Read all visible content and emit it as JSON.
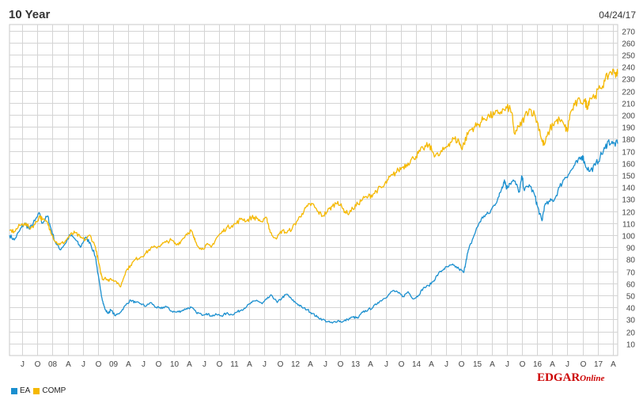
{
  "chart_data": {
    "type": "line",
    "title": "10 Year",
    "date": "04/24/17",
    "xlabel": "",
    "ylabel": "",
    "ylim": [
      0,
      275
    ],
    "yticks": [
      10,
      20,
      30,
      40,
      50,
      60,
      70,
      80,
      90,
      100,
      110,
      120,
      130,
      140,
      150,
      160,
      170,
      180,
      190,
      200,
      210,
      220,
      230,
      240,
      250,
      260,
      270
    ],
    "xlim": [
      2007.29,
      2017.33
    ],
    "xticks": [
      {
        "label": "J",
        "t": 2007.5
      },
      {
        "label": "O",
        "t": 2007.75
      },
      {
        "label": "08",
        "t": 2008.0
      },
      {
        "label": "A",
        "t": 2008.25
      },
      {
        "label": "J",
        "t": 2008.5
      },
      {
        "label": "O",
        "t": 2008.75
      },
      {
        "label": "09",
        "t": 2009.0
      },
      {
        "label": "A",
        "t": 2009.25
      },
      {
        "label": "J",
        "t": 2009.5
      },
      {
        "label": "O",
        "t": 2009.75
      },
      {
        "label": "10",
        "t": 2010.0
      },
      {
        "label": "A",
        "t": 2010.25
      },
      {
        "label": "J",
        "t": 2010.5
      },
      {
        "label": "O",
        "t": 2010.75
      },
      {
        "label": "11",
        "t": 2011.0
      },
      {
        "label": "A",
        "t": 2011.25
      },
      {
        "label": "J",
        "t": 2011.5
      },
      {
        "label": "O",
        "t": 2011.75
      },
      {
        "label": "12",
        "t": 2012.0
      },
      {
        "label": "A",
        "t": 2012.25
      },
      {
        "label": "J",
        "t": 2012.5
      },
      {
        "label": "O",
        "t": 2012.75
      },
      {
        "label": "13",
        "t": 2013.0
      },
      {
        "label": "A",
        "t": 2013.25
      },
      {
        "label": "J",
        "t": 2013.5
      },
      {
        "label": "O",
        "t": 2013.75
      },
      {
        "label": "14",
        "t": 2014.0
      },
      {
        "label": "A",
        "t": 2014.25
      },
      {
        "label": "J",
        "t": 2014.5
      },
      {
        "label": "O",
        "t": 2014.75
      },
      {
        "label": "15",
        "t": 2015.0
      },
      {
        "label": "A",
        "t": 2015.25
      },
      {
        "label": "J",
        "t": 2015.5
      },
      {
        "label": "O",
        "t": 2015.75
      },
      {
        "label": "16",
        "t": 2016.0
      },
      {
        "label": "A",
        "t": 2016.25
      },
      {
        "label": "J",
        "t": 2016.5
      },
      {
        "label": "O",
        "t": 2016.75
      },
      {
        "label": "17",
        "t": 2017.0
      },
      {
        "label": "A",
        "t": 2017.25
      }
    ],
    "grid": true,
    "legend_position": "bottom-left",
    "series": [
      {
        "name": "EA",
        "color": "#1a8fcf",
        "points": [
          [
            2007.29,
            100
          ],
          [
            2007.37,
            96
          ],
          [
            2007.46,
            104
          ],
          [
            2007.54,
            110
          ],
          [
            2007.62,
            105
          ],
          [
            2007.71,
            112
          ],
          [
            2007.79,
            118
          ],
          [
            2007.83,
            110
          ],
          [
            2007.92,
            116
          ],
          [
            2007.96,
            108
          ],
          [
            2008.04,
            95
          ],
          [
            2008.12,
            88
          ],
          [
            2008.21,
            93
          ],
          [
            2008.29,
            100
          ],
          [
            2008.37,
            97
          ],
          [
            2008.46,
            90
          ],
          [
            2008.54,
            98
          ],
          [
            2008.62,
            94
          ],
          [
            2008.71,
            82
          ],
          [
            2008.75,
            68
          ],
          [
            2008.79,
            55
          ],
          [
            2008.83,
            45
          ],
          [
            2008.87,
            38
          ],
          [
            2008.92,
            35
          ],
          [
            2008.96,
            38
          ],
          [
            2009.04,
            33
          ],
          [
            2009.12,
            36
          ],
          [
            2009.21,
            42
          ],
          [
            2009.29,
            46
          ],
          [
            2009.37,
            44
          ],
          [
            2009.46,
            43
          ],
          [
            2009.54,
            41
          ],
          [
            2009.62,
            44
          ],
          [
            2009.71,
            40
          ],
          [
            2009.79,
            39
          ],
          [
            2009.87,
            41
          ],
          [
            2009.96,
            37
          ],
          [
            2010.04,
            36
          ],
          [
            2010.12,
            37
          ],
          [
            2010.21,
            39
          ],
          [
            2010.29,
            40
          ],
          [
            2010.37,
            36
          ],
          [
            2010.46,
            34
          ],
          [
            2010.54,
            35
          ],
          [
            2010.62,
            33
          ],
          [
            2010.71,
            34
          ],
          [
            2010.79,
            33
          ],
          [
            2010.87,
            35
          ],
          [
            2010.96,
            34
          ],
          [
            2011.04,
            36
          ],
          [
            2011.12,
            38
          ],
          [
            2011.21,
            41
          ],
          [
            2011.29,
            44
          ],
          [
            2011.37,
            46
          ],
          [
            2011.46,
            43
          ],
          [
            2011.54,
            47
          ],
          [
            2011.62,
            50
          ],
          [
            2011.71,
            44
          ],
          [
            2011.79,
            48
          ],
          [
            2011.87,
            51
          ],
          [
            2011.96,
            46
          ],
          [
            2012.04,
            43
          ],
          [
            2012.12,
            40
          ],
          [
            2012.21,
            38
          ],
          [
            2012.29,
            35
          ],
          [
            2012.37,
            32
          ],
          [
            2012.46,
            30
          ],
          [
            2012.54,
            28
          ],
          [
            2012.62,
            27
          ],
          [
            2012.71,
            29
          ],
          [
            2012.79,
            28
          ],
          [
            2012.87,
            30
          ],
          [
            2012.96,
            32
          ],
          [
            2013.04,
            31
          ],
          [
            2013.12,
            36
          ],
          [
            2013.21,
            38
          ],
          [
            2013.29,
            40
          ],
          [
            2013.37,
            44
          ],
          [
            2013.46,
            47
          ],
          [
            2013.54,
            50
          ],
          [
            2013.62,
            54
          ],
          [
            2013.71,
            52
          ],
          [
            2013.79,
            49
          ],
          [
            2013.87,
            53
          ],
          [
            2013.96,
            47
          ],
          [
            2014.04,
            50
          ],
          [
            2014.12,
            56
          ],
          [
            2014.21,
            58
          ],
          [
            2014.29,
            62
          ],
          [
            2014.37,
            68
          ],
          [
            2014.46,
            72
          ],
          [
            2014.54,
            74
          ],
          [
            2014.62,
            75
          ],
          [
            2014.71,
            72
          ],
          [
            2014.79,
            69
          ],
          [
            2014.83,
            80
          ],
          [
            2014.87,
            88
          ],
          [
            2014.96,
            100
          ],
          [
            2015.04,
            110
          ],
          [
            2015.12,
            116
          ],
          [
            2015.21,
            118
          ],
          [
            2015.29,
            125
          ],
          [
            2015.37,
            132
          ],
          [
            2015.42,
            140
          ],
          [
            2015.46,
            146
          ],
          [
            2015.5,
            139
          ],
          [
            2015.54,
            143
          ],
          [
            2015.62,
            145
          ],
          [
            2015.71,
            136
          ],
          [
            2015.75,
            149
          ],
          [
            2015.79,
            137
          ],
          [
            2015.87,
            142
          ],
          [
            2015.96,
            133
          ],
          [
            2016.0,
            125
          ],
          [
            2016.04,
            118
          ],
          [
            2016.08,
            112
          ],
          [
            2016.12,
            124
          ],
          [
            2016.21,
            128
          ],
          [
            2016.29,
            130
          ],
          [
            2016.37,
            140
          ],
          [
            2016.46,
            148
          ],
          [
            2016.54,
            152
          ],
          [
            2016.62,
            158
          ],
          [
            2016.71,
            163
          ],
          [
            2016.75,
            166
          ],
          [
            2016.79,
            159
          ],
          [
            2016.87,
            153
          ],
          [
            2016.96,
            158
          ],
          [
            2017.04,
            165
          ],
          [
            2017.12,
            172
          ],
          [
            2017.17,
            178
          ],
          [
            2017.25,
            176
          ],
          [
            2017.33,
            176
          ]
        ]
      },
      {
        "name": "COMP",
        "color": "#f5b800",
        "points": [
          [
            2007.29,
            104
          ],
          [
            2007.37,
            103
          ],
          [
            2007.46,
            108
          ],
          [
            2007.54,
            110
          ],
          [
            2007.62,
            106
          ],
          [
            2007.71,
            109
          ],
          [
            2007.79,
            116
          ],
          [
            2007.83,
            113
          ],
          [
            2007.92,
            110
          ],
          [
            2007.96,
            105
          ],
          [
            2008.04,
            95
          ],
          [
            2008.12,
            92
          ],
          [
            2008.21,
            95
          ],
          [
            2008.29,
            100
          ],
          [
            2008.37,
            102
          ],
          [
            2008.46,
            98
          ],
          [
            2008.54,
            96
          ],
          [
            2008.62,
            100
          ],
          [
            2008.71,
            90
          ],
          [
            2008.75,
            80
          ],
          [
            2008.79,
            70
          ],
          [
            2008.83,
            63
          ],
          [
            2008.87,
            65
          ],
          [
            2008.92,
            62
          ],
          [
            2008.96,
            64
          ],
          [
            2009.04,
            62
          ],
          [
            2009.12,
            57
          ],
          [
            2009.17,
            64
          ],
          [
            2009.21,
            70
          ],
          [
            2009.29,
            75
          ],
          [
            2009.37,
            80
          ],
          [
            2009.46,
            82
          ],
          [
            2009.54,
            85
          ],
          [
            2009.62,
            89
          ],
          [
            2009.71,
            90
          ],
          [
            2009.79,
            92
          ],
          [
            2009.87,
            94
          ],
          [
            2009.96,
            96
          ],
          [
            2010.04,
            92
          ],
          [
            2010.12,
            95
          ],
          [
            2010.21,
            101
          ],
          [
            2010.29,
            104
          ],
          [
            2010.33,
            98
          ],
          [
            2010.37,
            94
          ],
          [
            2010.46,
            88
          ],
          [
            2010.54,
            92
          ],
          [
            2010.62,
            90
          ],
          [
            2010.71,
            98
          ],
          [
            2010.79,
            102
          ],
          [
            2010.87,
            106
          ],
          [
            2010.96,
            108
          ],
          [
            2011.04,
            110
          ],
          [
            2011.12,
            114
          ],
          [
            2011.21,
            112
          ],
          [
            2011.29,
            115
          ],
          [
            2011.37,
            114
          ],
          [
            2011.46,
            111
          ],
          [
            2011.54,
            114
          ],
          [
            2011.58,
            105
          ],
          [
            2011.62,
            100
          ],
          [
            2011.71,
            98
          ],
          [
            2011.79,
            104
          ],
          [
            2011.87,
            102
          ],
          [
            2011.96,
            106
          ],
          [
            2012.04,
            112
          ],
          [
            2012.12,
            118
          ],
          [
            2012.21,
            124
          ],
          [
            2012.29,
            126
          ],
          [
            2012.37,
            120
          ],
          [
            2012.46,
            116
          ],
          [
            2012.54,
            120
          ],
          [
            2012.62,
            124
          ],
          [
            2012.71,
            128
          ],
          [
            2012.79,
            122
          ],
          [
            2012.87,
            118
          ],
          [
            2012.96,
            122
          ],
          [
            2013.04,
            126
          ],
          [
            2013.12,
            130
          ],
          [
            2013.21,
            132
          ],
          [
            2013.29,
            134
          ],
          [
            2013.37,
            138
          ],
          [
            2013.46,
            140
          ],
          [
            2013.54,
            146
          ],
          [
            2013.62,
            150
          ],
          [
            2013.71,
            154
          ],
          [
            2013.79,
            157
          ],
          [
            2013.87,
            160
          ],
          [
            2013.96,
            164
          ],
          [
            2014.04,
            168
          ],
          [
            2014.12,
            172
          ],
          [
            2014.21,
            175
          ],
          [
            2014.29,
            168
          ],
          [
            2014.37,
            166
          ],
          [
            2014.46,
            171
          ],
          [
            2014.54,
            176
          ],
          [
            2014.62,
            180
          ],
          [
            2014.71,
            178
          ],
          [
            2014.75,
            172
          ],
          [
            2014.79,
            176
          ],
          [
            2014.87,
            186
          ],
          [
            2014.96,
            190
          ],
          [
            2015.04,
            192
          ],
          [
            2015.12,
            197
          ],
          [
            2015.21,
            199
          ],
          [
            2015.29,
            200
          ],
          [
            2015.37,
            202
          ],
          [
            2015.46,
            204
          ],
          [
            2015.54,
            206
          ],
          [
            2015.58,
            202
          ],
          [
            2015.62,
            185
          ],
          [
            2015.71,
            190
          ],
          [
            2015.79,
            198
          ],
          [
            2015.87,
            205
          ],
          [
            2015.96,
            200
          ],
          [
            2016.04,
            188
          ],
          [
            2016.08,
            178
          ],
          [
            2016.12,
            175
          ],
          [
            2016.21,
            188
          ],
          [
            2016.29,
            194
          ],
          [
            2016.37,
            196
          ],
          [
            2016.46,
            190
          ],
          [
            2016.5,
            186
          ],
          [
            2016.54,
            200
          ],
          [
            2016.62,
            208
          ],
          [
            2016.71,
            212
          ],
          [
            2016.79,
            211
          ],
          [
            2016.83,
            207
          ],
          [
            2016.87,
            214
          ],
          [
            2016.96,
            216
          ],
          [
            2017.04,
            222
          ],
          [
            2017.12,
            228
          ],
          [
            2017.21,
            236
          ],
          [
            2017.29,
            235
          ],
          [
            2017.33,
            234
          ]
        ]
      }
    ]
  },
  "legend": [
    {
      "label": "EA",
      "color": "#1a8fcf"
    },
    {
      "label": "COMP",
      "color": "#f5b800"
    }
  ],
  "logo": {
    "main": "EDGAR",
    "suffix": "Online"
  }
}
